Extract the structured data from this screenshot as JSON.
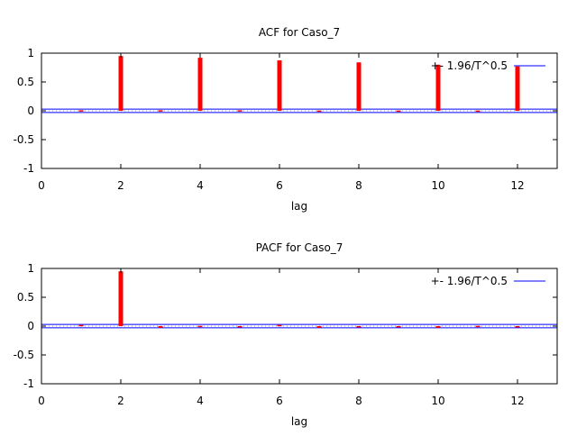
{
  "chart_data": [
    {
      "type": "bar",
      "title": "ACF for Caso_7",
      "xlabel": "lag",
      "ylabel": "",
      "xlim": [
        0,
        13
      ],
      "ylim": [
        -1,
        1
      ],
      "xticks": [
        "0",
        "2",
        "4",
        "6",
        "8",
        "10",
        "12"
      ],
      "yticks": [
        "1",
        "0.5",
        "0",
        "-0.5",
        "-1"
      ],
      "legend": {
        "label": "+- 1.96/T^0.5",
        "position": "top-right"
      },
      "band": 0.03,
      "lags": [
        1,
        2,
        3,
        4,
        5,
        6,
        7,
        8,
        9,
        10,
        11,
        12
      ],
      "values": [
        0.01,
        0.95,
        0.01,
        0.92,
        0.01,
        0.875,
        0.005,
        0.84,
        0.005,
        0.8,
        0.005,
        0.77
      ],
      "bar_color": "#ff0000",
      "band_color": "#0000ff"
    },
    {
      "type": "bar",
      "title": "PACF for Caso_7",
      "xlabel": "lag",
      "ylabel": "",
      "xlim": [
        0,
        13
      ],
      "ylim": [
        -1,
        1
      ],
      "xticks": [
        "0",
        "2",
        "4",
        "6",
        "8",
        "10",
        "12"
      ],
      "yticks": [
        "1",
        "0.5",
        "0",
        "-0.5",
        "-1"
      ],
      "legend": {
        "label": "+- 1.96/T^0.5",
        "position": "top-right"
      },
      "band": 0.03,
      "lags": [
        1,
        2,
        3,
        4,
        5,
        6,
        7,
        8,
        9,
        10,
        11,
        12
      ],
      "values": [
        0.02,
        0.95,
        -0.03,
        0.005,
        -0.005,
        0.02,
        -0.03,
        -0.005,
        -0.005,
        -0.03,
        0.005,
        -0.005
      ],
      "bar_color": "#ff0000",
      "band_color": "#0000ff"
    }
  ]
}
